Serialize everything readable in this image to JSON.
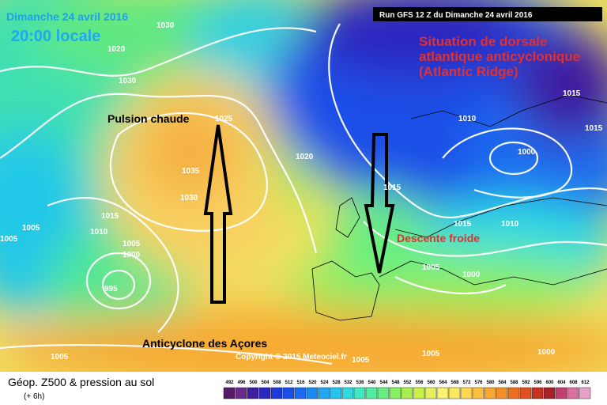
{
  "header": {
    "date": "Dimanche 24 avril 2016",
    "time": "20:00 locale",
    "run": "Run GFS 12 Z du Dimanche 24 avril 2016"
  },
  "annotations": {
    "situation": [
      "Situation de dorsale",
      "atlantique anticyclonique",
      "(Atlantic Ridge)"
    ],
    "warm": "Pulsion chaude",
    "cold": "Descente froide",
    "azores": "Anticyclone des Açores",
    "copyright": "Copyright © 2015 Meteociel.fr"
  },
  "isobars": [
    "1030",
    "1020",
    "1030",
    "1025",
    "1035",
    "1030",
    "1020",
    "1015",
    "1010",
    "1005",
    "1005",
    "1000",
    "995",
    "1015",
    "1010",
    "1000",
    "1015",
    "1015",
    "1010",
    "1005",
    "1000",
    "1000",
    "1005",
    "1005",
    "1005",
    "1015",
    "1005"
  ],
  "footer": {
    "title": "Géop. Z500 & pression au sol",
    "step": "(+ 6h)"
  },
  "legend": {
    "ticks": [
      "492",
      "496",
      "500",
      "504",
      "508",
      "512",
      "516",
      "520",
      "524",
      "528",
      "532",
      "536",
      "540",
      "544",
      "548",
      "552",
      "556",
      "560",
      "564",
      "568",
      "572",
      "576",
      "580",
      "584",
      "588",
      "592",
      "596",
      "600",
      "604",
      "608",
      "612"
    ],
    "colors": [
      "#5a1a6a",
      "#6a2a8a",
      "#3c1ea0",
      "#2a28c0",
      "#1e3ad8",
      "#1a50e8",
      "#1a6cf0",
      "#1a8af0",
      "#20a8f0",
      "#28c4f0",
      "#30dce0",
      "#40e8c0",
      "#50eca0",
      "#68ee80",
      "#88f060",
      "#a8f050",
      "#c8f048",
      "#e4f060",
      "#f8f070",
      "#fce860",
      "#fcd850",
      "#fcc040",
      "#f8a830",
      "#f49028",
      "#ec7020",
      "#e05020",
      "#c83020",
      "#a82028",
      "#c04070",
      "#d870a0",
      "#e8a0c8"
    ]
  }
}
